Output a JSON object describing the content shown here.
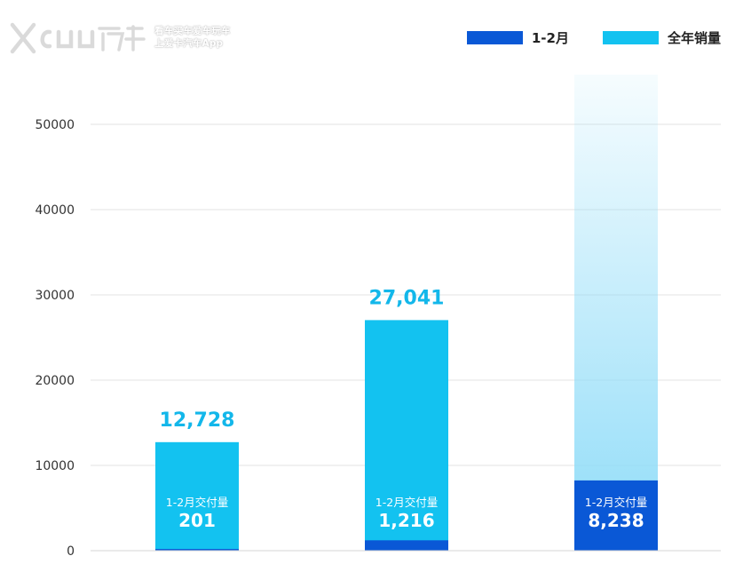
{
  "watermark": {
    "logo_text": "XCAR爱卡",
    "line1": "看车买车爱车玩车",
    "line2": "上爱卡汽车App"
  },
  "colors": {
    "h1": "#0a58d6",
    "annual": "#13c2f0",
    "annual_light": "#8fdcf8",
    "grid": "#e3e3e3",
    "axis_text": "#333333",
    "top_label": "#13b7ea"
  },
  "chart_data": {
    "type": "bar",
    "title": "",
    "xlabel": "",
    "ylabel": "",
    "ylim": [
      0,
      55000
    ],
    "yticks": [
      0,
      10000,
      20000,
      30000,
      40000,
      50000
    ],
    "grid": true,
    "legend_position": "top-right",
    "inner_label": "1-2月交付量",
    "series": [
      {
        "name": "1-2月",
        "values": [
          201,
          1216,
          8238
        ],
        "value_labels": [
          "201",
          "1,216",
          "8,238"
        ]
      },
      {
        "name": "全年销量",
        "values": [
          12728,
          27041,
          null
        ],
        "value_labels": [
          "12,728",
          "27,041",
          ""
        ],
        "third_bar_style": "faded-gradient-extending-to-top"
      }
    ]
  }
}
